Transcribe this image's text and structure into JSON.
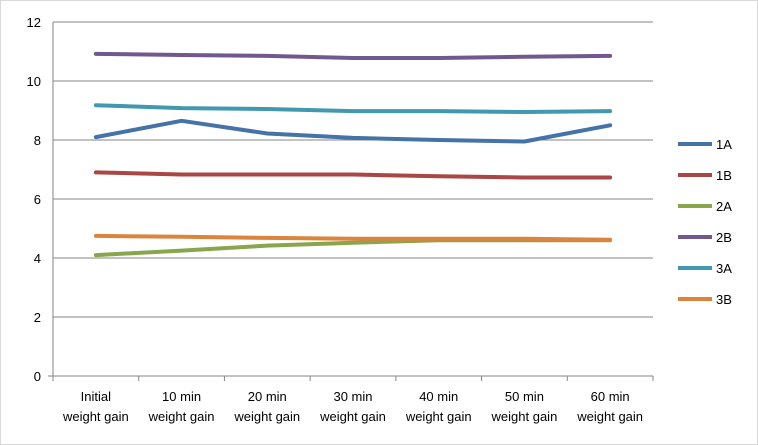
{
  "chart_data": {
    "type": "line",
    "title": "",
    "xlabel": "",
    "ylabel": "",
    "categories": [
      [
        "Initial",
        "weight gain"
      ],
      [
        "10 min",
        "weight gain"
      ],
      [
        "20 min",
        "weight gain"
      ],
      [
        "30 min",
        "weight gain"
      ],
      [
        "40 min",
        "weight gain"
      ],
      [
        "50 min",
        "weight gain"
      ],
      [
        "60 min",
        "weight gain"
      ]
    ],
    "ylim": [
      0,
      12
    ],
    "yticks": [
      "0",
      "2",
      "4",
      "6",
      "8",
      "10",
      "12"
    ],
    "grid": "horizontal",
    "legend_position": "right",
    "series": [
      {
        "name": "1A",
        "color": "#4572a7",
        "values": [
          8.1,
          8.65,
          8.22,
          8.07,
          8.0,
          7.95,
          8.5
        ]
      },
      {
        "name": "1B",
        "color": "#aa4643",
        "values": [
          6.9,
          6.83,
          6.83,
          6.83,
          6.77,
          6.73,
          6.73
        ]
      },
      {
        "name": "2A",
        "color": "#89a54e",
        "values": [
          4.1,
          4.25,
          4.42,
          4.52,
          4.6,
          4.6,
          4.6
        ]
      },
      {
        "name": "2B",
        "color": "#71588f",
        "values": [
          10.92,
          10.88,
          10.85,
          10.78,
          10.78,
          10.82,
          10.85
        ]
      },
      {
        "name": "3A",
        "color": "#4198af",
        "values": [
          9.18,
          9.08,
          9.05,
          8.98,
          8.98,
          8.95,
          8.98
        ]
      },
      {
        "name": "3B",
        "color": "#db843d",
        "values": [
          4.75,
          4.72,
          4.68,
          4.65,
          4.65,
          4.65,
          4.62
        ]
      }
    ]
  }
}
